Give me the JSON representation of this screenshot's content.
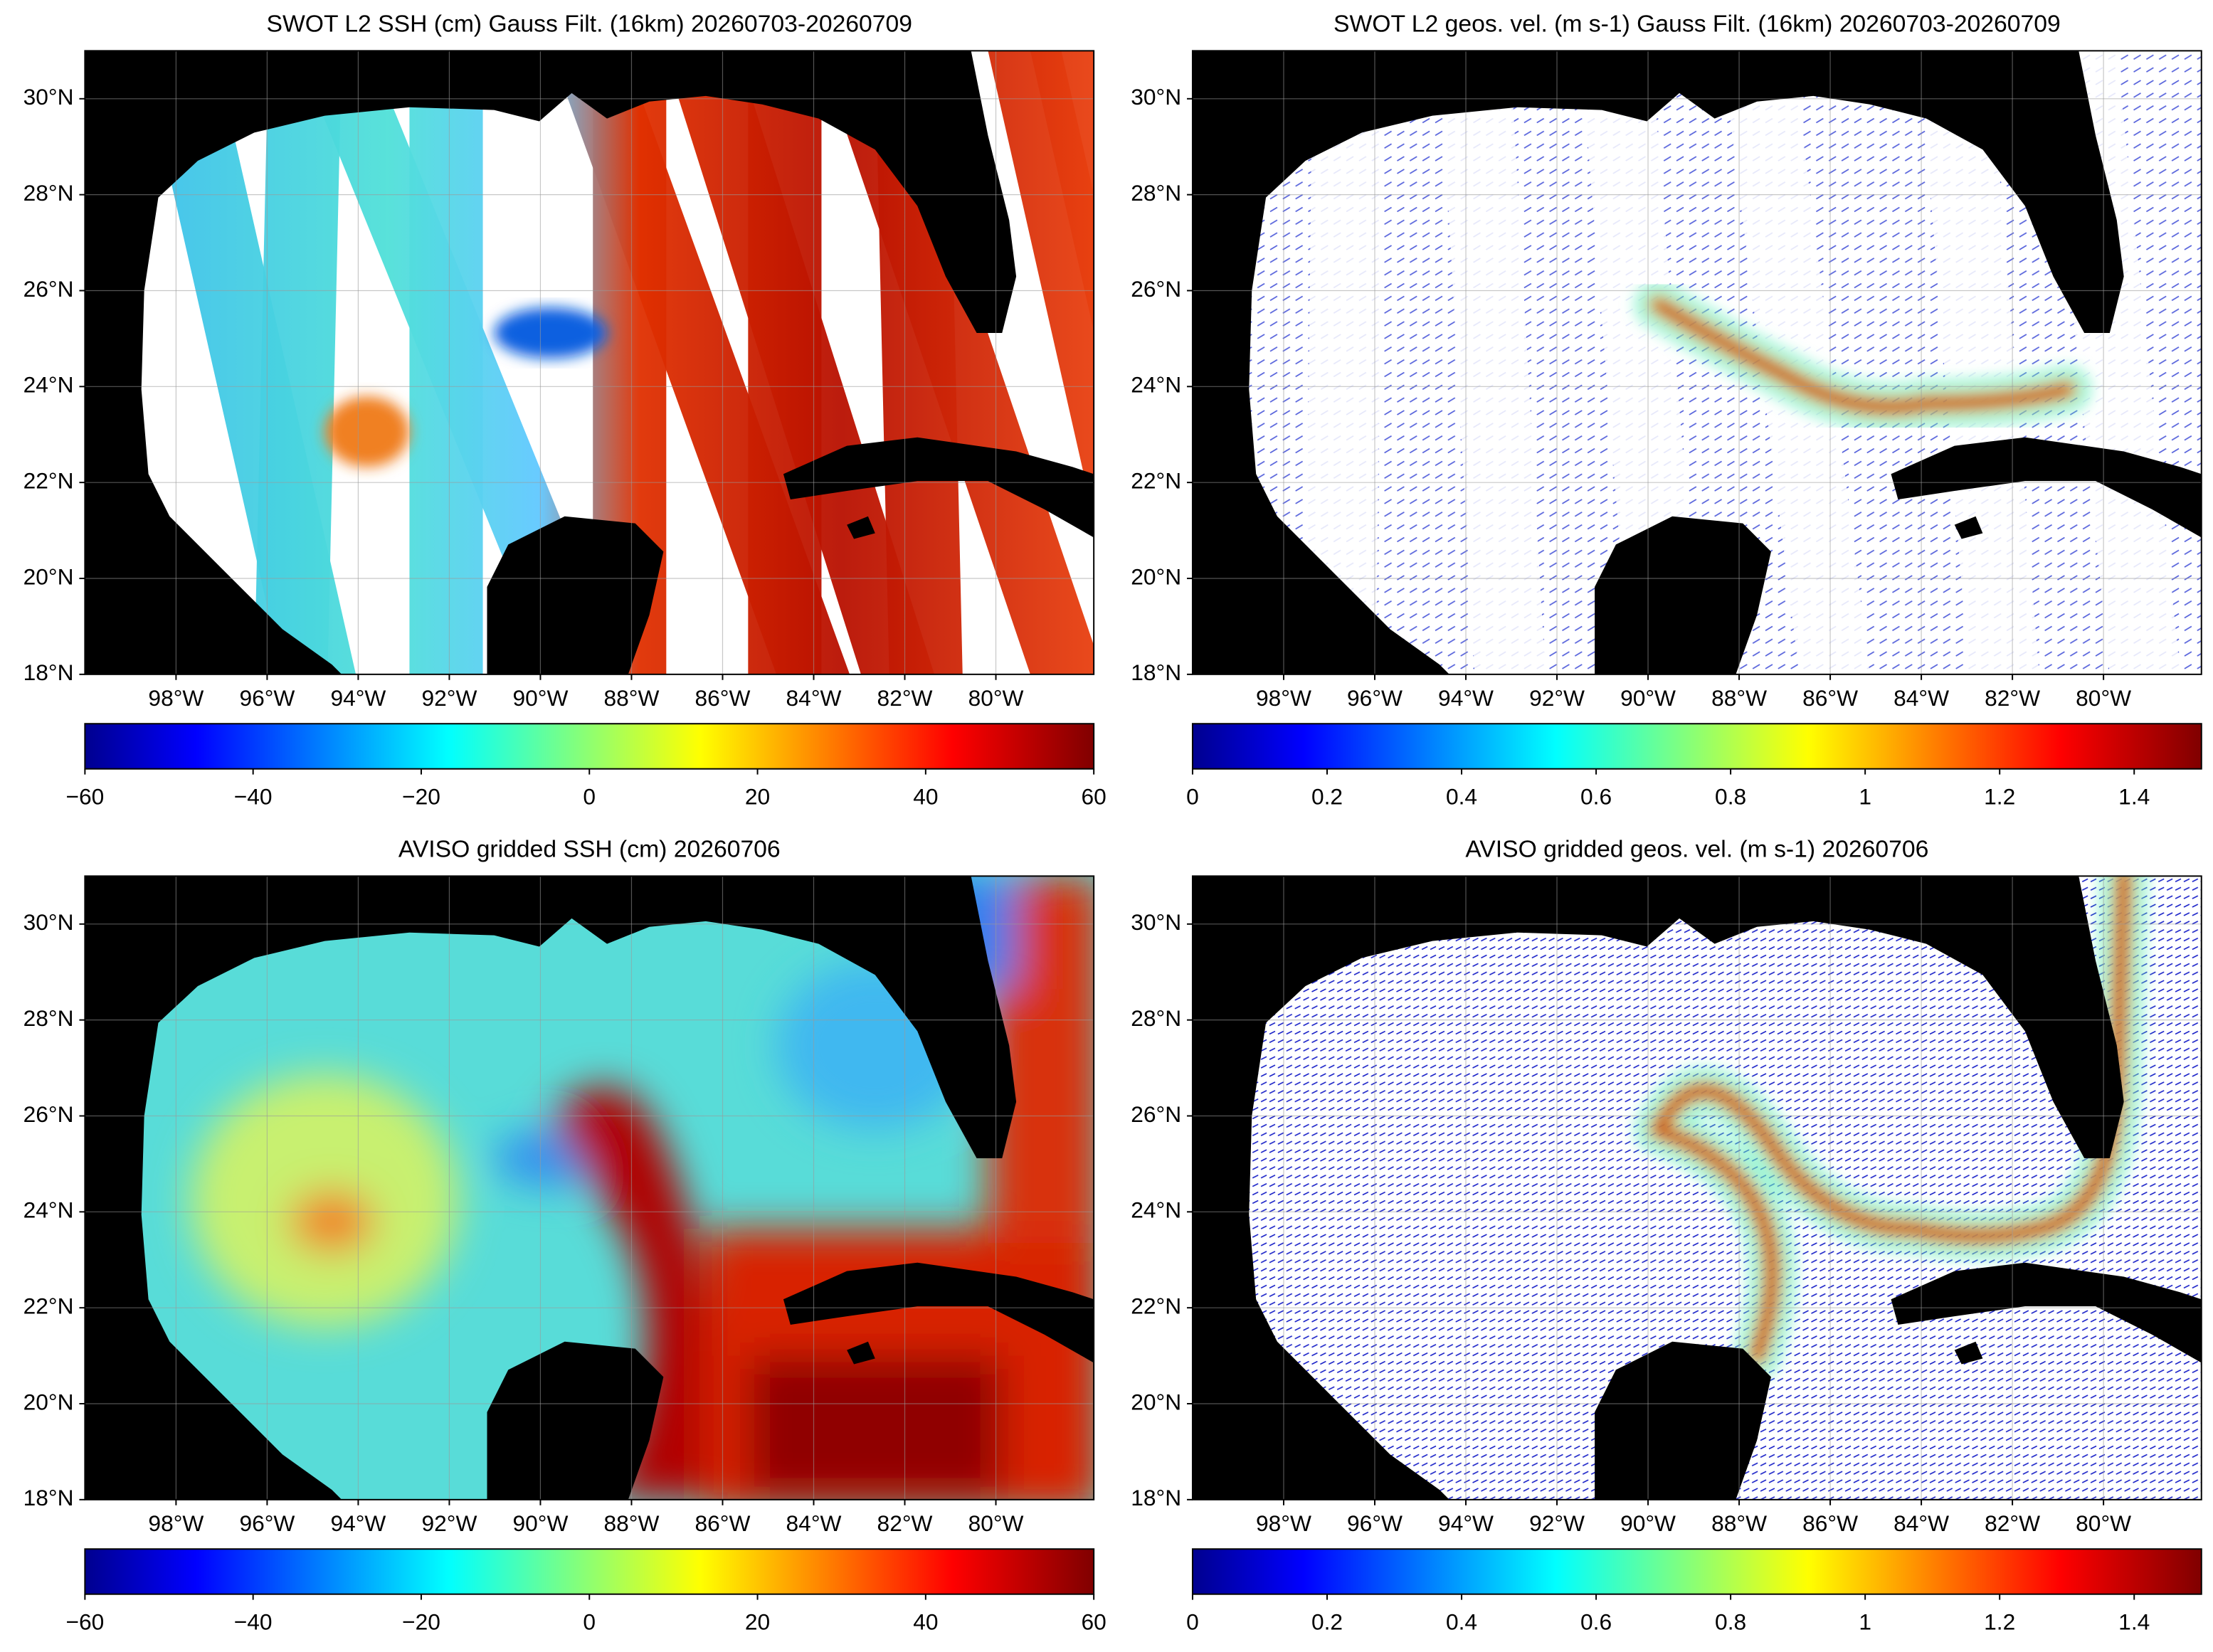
{
  "panels": [
    {
      "title": "SWOT L2 SSH (cm) Gauss Filt. (16km) 20260703-20260709",
      "lonlim": [
        -100,
        -77.85
      ],
      "latlim": [
        18,
        31
      ],
      "lon_ticks": [
        {
          "value": -98,
          "label": "98°W"
        },
        {
          "value": -96,
          "label": "96°W"
        },
        {
          "value": -94,
          "label": "94°W"
        },
        {
          "value": -92,
          "label": "92°W"
        },
        {
          "value": -90,
          "label": "90°W"
        },
        {
          "value": -88,
          "label": "88°W"
        },
        {
          "value": -86,
          "label": "86°W"
        },
        {
          "value": -84,
          "label": "84°W"
        },
        {
          "value": -82,
          "label": "82°W"
        },
        {
          "value": -80,
          "label": "80°W"
        }
      ],
      "lat_ticks": [
        {
          "value": 18,
          "label": "18°N"
        },
        {
          "value": 20,
          "label": "20°N"
        },
        {
          "value": 22,
          "label": "22°N"
        },
        {
          "value": 24,
          "label": "24°N"
        },
        {
          "value": 26,
          "label": "26°N"
        },
        {
          "value": 28,
          "label": "28°N"
        },
        {
          "value": 30,
          "label": "30°N"
        }
      ],
      "colorbar": {
        "range": [
          -60,
          60
        ],
        "ticks": [
          {
            "value": -60,
            "label": "−60"
          },
          {
            "value": -40,
            "label": "−40"
          },
          {
            "value": -20,
            "label": "−20"
          },
          0,
          20,
          40,
          60
        ]
      }
    },
    {
      "title": "SWOT L2 geos. vel. (m s-1) Gauss Filt. (16km) 20260703-20260709",
      "lonlim": [
        -100,
        -77.85
      ],
      "latlim": [
        18,
        31
      ],
      "lon_ticks": [
        {
          "value": -98,
          "label": "98°W"
        },
        {
          "value": -96,
          "label": "96°W"
        },
        {
          "value": -94,
          "label": "94°W"
        },
        {
          "value": -92,
          "label": "92°W"
        },
        {
          "value": -90,
          "label": "90°W"
        },
        {
          "value": -88,
          "label": "88°W"
        },
        {
          "value": -86,
          "label": "86°W"
        },
        {
          "value": -84,
          "label": "84°W"
        },
        {
          "value": -82,
          "label": "82°W"
        },
        {
          "value": -80,
          "label": "80°W"
        }
      ],
      "lat_ticks": [
        {
          "value": 18,
          "label": "18°N"
        },
        {
          "value": 20,
          "label": "20°N"
        },
        {
          "value": 22,
          "label": "22°N"
        },
        {
          "value": 24,
          "label": "24°N"
        },
        {
          "value": 26,
          "label": "26°N"
        },
        {
          "value": 28,
          "label": "28°N"
        },
        {
          "value": 30,
          "label": "30°N"
        }
      ],
      "colorbar": {
        "range": [
          0,
          1.5
        ],
        "ticks": [
          0,
          0.2,
          0.4,
          0.6,
          0.8,
          1,
          1.2,
          1.4
        ]
      }
    },
    {
      "title": "AVISO gridded SSH (cm) 20260706",
      "lonlim": [
        -100,
        -77.85
      ],
      "latlim": [
        18,
        31
      ],
      "lon_ticks": [
        {
          "value": -98,
          "label": "98°W"
        },
        {
          "value": -96,
          "label": "96°W"
        },
        {
          "value": -94,
          "label": "94°W"
        },
        {
          "value": -92,
          "label": "92°W"
        },
        {
          "value": -90,
          "label": "90°W"
        },
        {
          "value": -88,
          "label": "88°W"
        },
        {
          "value": -86,
          "label": "86°W"
        },
        {
          "value": -84,
          "label": "84°W"
        },
        {
          "value": -82,
          "label": "82°W"
        },
        {
          "value": -80,
          "label": "80°W"
        }
      ],
      "lat_ticks": [
        {
          "value": 18,
          "label": "18°N"
        },
        {
          "value": 20,
          "label": "20°N"
        },
        {
          "value": 22,
          "label": "22°N"
        },
        {
          "value": 24,
          "label": "24°N"
        },
        {
          "value": 26,
          "label": "26°N"
        },
        {
          "value": 28,
          "label": "28°N"
        },
        {
          "value": 30,
          "label": "30°N"
        }
      ],
      "colorbar": {
        "range": [
          -60,
          60
        ],
        "ticks": [
          {
            "value": -60,
            "label": "−60"
          },
          {
            "value": -40,
            "label": "−40"
          },
          {
            "value": -20,
            "label": "−20"
          },
          0,
          20,
          40,
          60
        ]
      }
    },
    {
      "title": "AVISO gridded geos. vel. (m s-1)  20260706",
      "lonlim": [
        -100,
        -77.85
      ],
      "latlim": [
        18,
        31
      ],
      "lon_ticks": [
        {
          "value": -98,
          "label": "98°W"
        },
        {
          "value": -96,
          "label": "96°W"
        },
        {
          "value": -94,
          "label": "94°W"
        },
        {
          "value": -92,
          "label": "92°W"
        },
        {
          "value": -90,
          "label": "90°W"
        },
        {
          "value": -88,
          "label": "88°W"
        },
        {
          "value": -86,
          "label": "86°W"
        },
        {
          "value": -84,
          "label": "84°W"
        },
        {
          "value": -82,
          "label": "82°W"
        },
        {
          "value": -80,
          "label": "80°W"
        }
      ],
      "lat_ticks": [
        {
          "value": 18,
          "label": "18°N"
        },
        {
          "value": 20,
          "label": "20°N"
        },
        {
          "value": 22,
          "label": "22°N"
        },
        {
          "value": 24,
          "label": "24°N"
        },
        {
          "value": 26,
          "label": "26°N"
        },
        {
          "value": 28,
          "label": "28°N"
        },
        {
          "value": 30,
          "label": "30°N"
        }
      ],
      "colorbar": {
        "range": [
          0,
          1.5
        ],
        "ticks": [
          0,
          0.2,
          0.4,
          0.6,
          0.8,
          1,
          1.2,
          1.4
        ]
      }
    }
  ]
}
